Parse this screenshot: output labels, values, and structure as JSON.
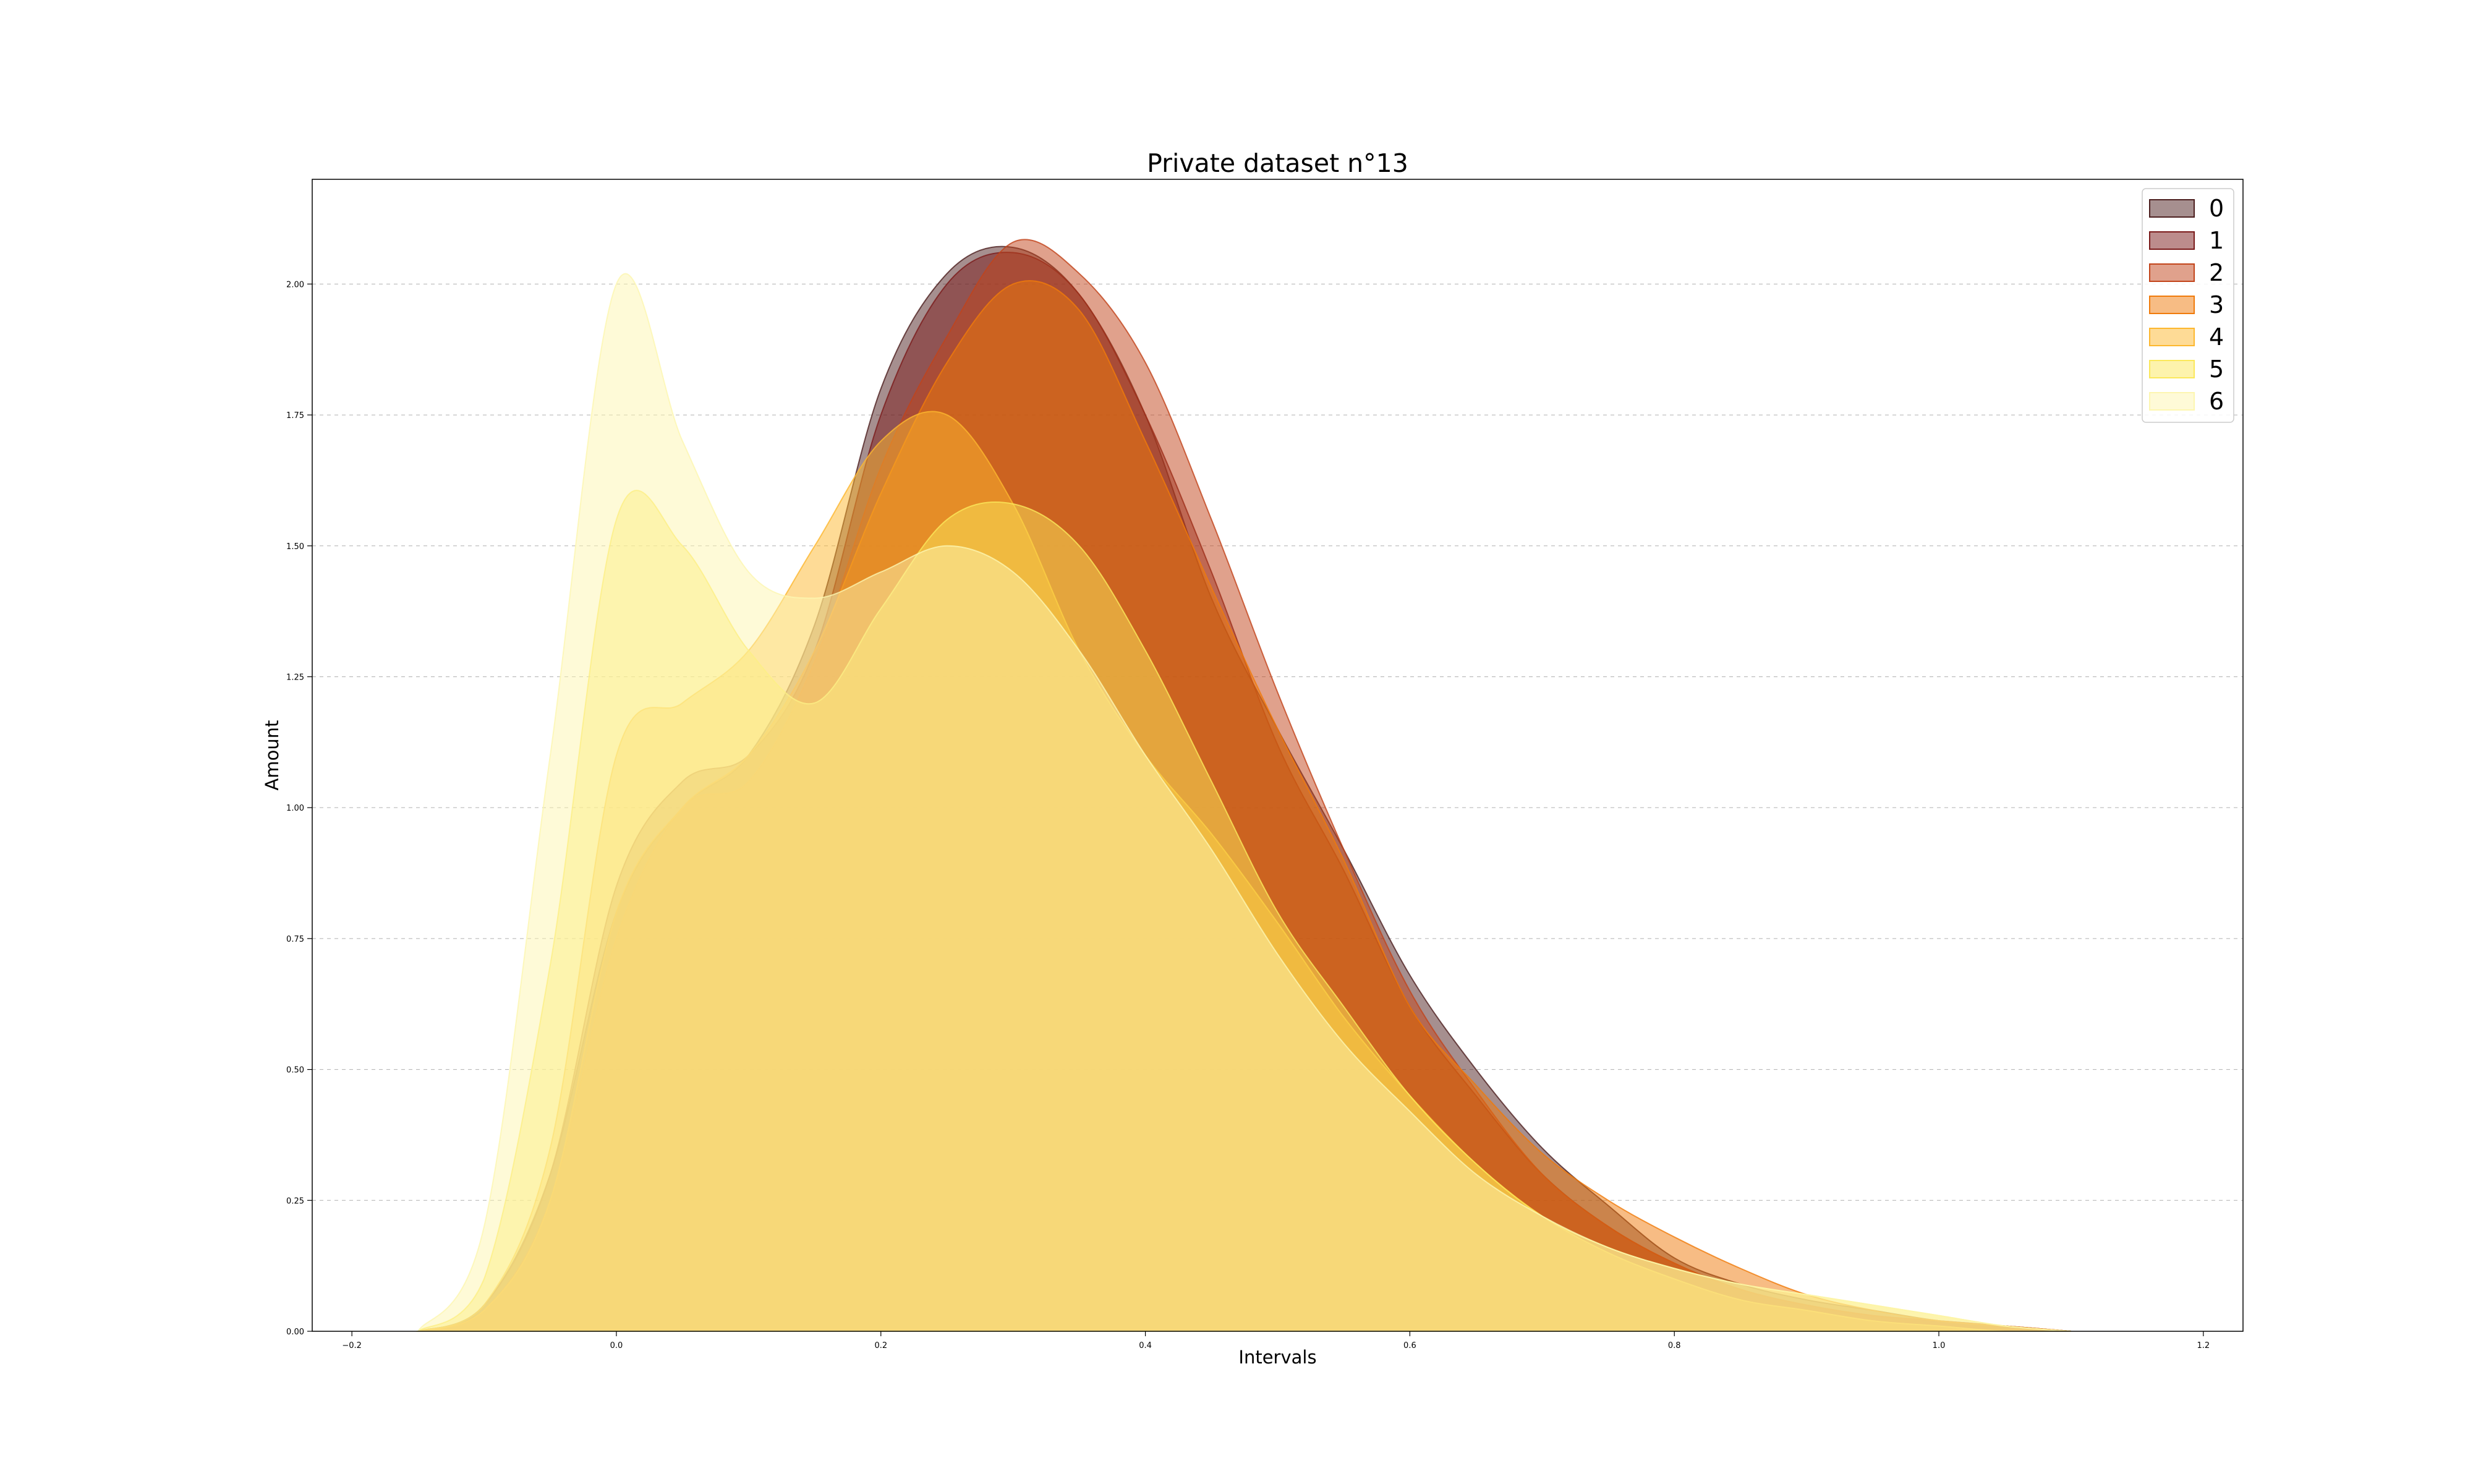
{
  "chart_data": {
    "type": "area",
    "title": "Private dataset n°13",
    "xlabel": "Intervals",
    "ylabel": "Amount",
    "xlim": [
      -0.23,
      1.23
    ],
    "ylim": [
      0,
      2.2
    ],
    "x_ticks": [
      "−0.2",
      "0.0",
      "0.2",
      "0.4",
      "0.6",
      "0.8",
      "1.0",
      "1.2"
    ],
    "x_tick_values": [
      -0.2,
      0.0,
      0.2,
      0.4,
      0.6,
      0.8,
      1.0,
      1.2
    ],
    "y_ticks": [
      "0.00",
      "0.25",
      "0.50",
      "0.75",
      "1.00",
      "1.25",
      "1.50",
      "1.75",
      "2.00"
    ],
    "y_tick_values": [
      0,
      0.25,
      0.5,
      0.75,
      1.0,
      1.25,
      1.5,
      1.75,
      2.0
    ],
    "grid": "horizontal dashed",
    "legend_position": "top-right",
    "series": [
      {
        "name": "0",
        "color": "#4d1f1f",
        "opacity": 0.5,
        "x": [
          -0.15,
          -0.1,
          -0.05,
          0.0,
          0.05,
          0.1,
          0.15,
          0.2,
          0.25,
          0.3,
          0.35,
          0.4,
          0.45,
          0.5,
          0.55,
          0.6,
          0.65,
          0.7,
          0.75,
          0.8,
          0.85,
          0.9,
          0.95,
          1.0,
          1.05,
          1.1
        ],
        "y": [
          0.0,
          0.05,
          0.3,
          0.8,
          1.0,
          1.1,
          1.35,
          1.8,
          2.02,
          2.07,
          1.98,
          1.75,
          1.4,
          1.15,
          0.92,
          0.68,
          0.5,
          0.35,
          0.24,
          0.14,
          0.09,
          0.06,
          0.04,
          0.02,
          0.01,
          0.0
        ]
      },
      {
        "name": "1",
        "color": "#7a1a1a",
        "opacity": 0.5,
        "x": [
          -0.15,
          -0.1,
          -0.05,
          0.0,
          0.05,
          0.1,
          0.15,
          0.2,
          0.25,
          0.3,
          0.35,
          0.4,
          0.45,
          0.5,
          0.55,
          0.6,
          0.65,
          0.7,
          0.75,
          0.8,
          0.85,
          0.9,
          0.95,
          1.0,
          1.05,
          1.1
        ],
        "y": [
          0.0,
          0.05,
          0.3,
          0.85,
          1.05,
          1.1,
          1.3,
          1.75,
          2.0,
          2.06,
          1.98,
          1.75,
          1.45,
          1.12,
          0.88,
          0.62,
          0.45,
          0.3,
          0.2,
          0.13,
          0.08,
          0.05,
          0.03,
          0.02,
          0.01,
          0.0
        ]
      },
      {
        "name": "2",
        "color": "#c2441a",
        "opacity": 0.5,
        "x": [
          -0.15,
          -0.1,
          -0.05,
          0.0,
          0.05,
          0.1,
          0.15,
          0.2,
          0.25,
          0.3,
          0.35,
          0.4,
          0.45,
          0.5,
          0.55,
          0.6,
          0.65,
          0.7,
          0.75,
          0.8,
          0.85,
          0.9,
          0.95,
          1.0,
          1.05,
          1.1
        ],
        "y": [
          0.0,
          0.04,
          0.25,
          0.75,
          1.0,
          1.05,
          1.28,
          1.65,
          1.9,
          2.08,
          2.02,
          1.85,
          1.55,
          1.22,
          0.92,
          0.65,
          0.46,
          0.3,
          0.2,
          0.13,
          0.08,
          0.05,
          0.03,
          0.02,
          0.01,
          0.0
        ]
      },
      {
        "name": "3",
        "color": "#f07a0a",
        "opacity": 0.5,
        "x": [
          -0.15,
          -0.1,
          -0.05,
          0.0,
          0.05,
          0.1,
          0.15,
          0.2,
          0.25,
          0.3,
          0.35,
          0.4,
          0.45,
          0.5,
          0.55,
          0.6,
          0.65,
          0.7,
          0.75,
          0.8,
          0.85,
          0.9,
          0.95,
          1.0,
          1.05,
          1.1
        ],
        "y": [
          0.0,
          0.04,
          0.25,
          0.8,
          1.0,
          1.1,
          1.3,
          1.6,
          1.85,
          2.0,
          1.95,
          1.7,
          1.42,
          1.15,
          0.9,
          0.62,
          0.47,
          0.34,
          0.25,
          0.18,
          0.12,
          0.07,
          0.04,
          0.02,
          0.01,
          0.0
        ]
      },
      {
        "name": "4",
        "color": "#fdb72e",
        "opacity": 0.5,
        "x": [
          -0.15,
          -0.1,
          -0.05,
          0.0,
          0.05,
          0.1,
          0.15,
          0.2,
          0.25,
          0.3,
          0.35,
          0.4,
          0.45,
          0.5,
          0.55,
          0.6,
          0.65,
          0.7,
          0.75,
          0.8,
          0.85,
          0.9,
          0.95,
          1.0,
          1.05,
          1.1
        ],
        "y": [
          0.0,
          0.05,
          0.35,
          1.1,
          1.2,
          1.3,
          1.5,
          1.7,
          1.75,
          1.58,
          1.3,
          1.1,
          0.95,
          0.78,
          0.6,
          0.45,
          0.32,
          0.22,
          0.15,
          0.1,
          0.06,
          0.04,
          0.02,
          0.01,
          0.0,
          0.0
        ]
      },
      {
        "name": "5",
        "color": "#fbe85a",
        "opacity": 0.5,
        "x": [
          -0.15,
          -0.1,
          -0.05,
          0.0,
          0.05,
          0.1,
          0.15,
          0.2,
          0.25,
          0.3,
          0.35,
          0.4,
          0.45,
          0.5,
          0.55,
          0.6,
          0.65,
          0.7,
          0.75,
          0.8,
          0.85,
          0.9,
          0.95,
          1.0,
          1.05,
          1.1
        ],
        "y": [
          0.0,
          0.1,
          0.7,
          1.55,
          1.5,
          1.3,
          1.2,
          1.38,
          1.55,
          1.58,
          1.5,
          1.3,
          1.05,
          0.8,
          0.62,
          0.45,
          0.32,
          0.22,
          0.16,
          0.12,
          0.09,
          0.07,
          0.05,
          0.03,
          0.01,
          0.0
        ]
      },
      {
        "name": "6",
        "color": "#fdf6b0",
        "opacity": 0.5,
        "x": [
          -0.15,
          -0.1,
          -0.05,
          0.0,
          0.05,
          0.1,
          0.15,
          0.2,
          0.25,
          0.3,
          0.35,
          0.4,
          0.45,
          0.5,
          0.55,
          0.6,
          0.65,
          0.7,
          0.75,
          0.8,
          0.85,
          0.9,
          0.95,
          1.0,
          1.05,
          1.1
        ],
        "y": [
          0.0,
          0.2,
          1.1,
          2.0,
          1.7,
          1.45,
          1.4,
          1.45,
          1.5,
          1.45,
          1.3,
          1.1,
          0.92,
          0.72,
          0.55,
          0.42,
          0.3,
          0.22,
          0.16,
          0.12,
          0.09,
          0.07,
          0.05,
          0.03,
          0.01,
          0.0
        ]
      }
    ]
  }
}
